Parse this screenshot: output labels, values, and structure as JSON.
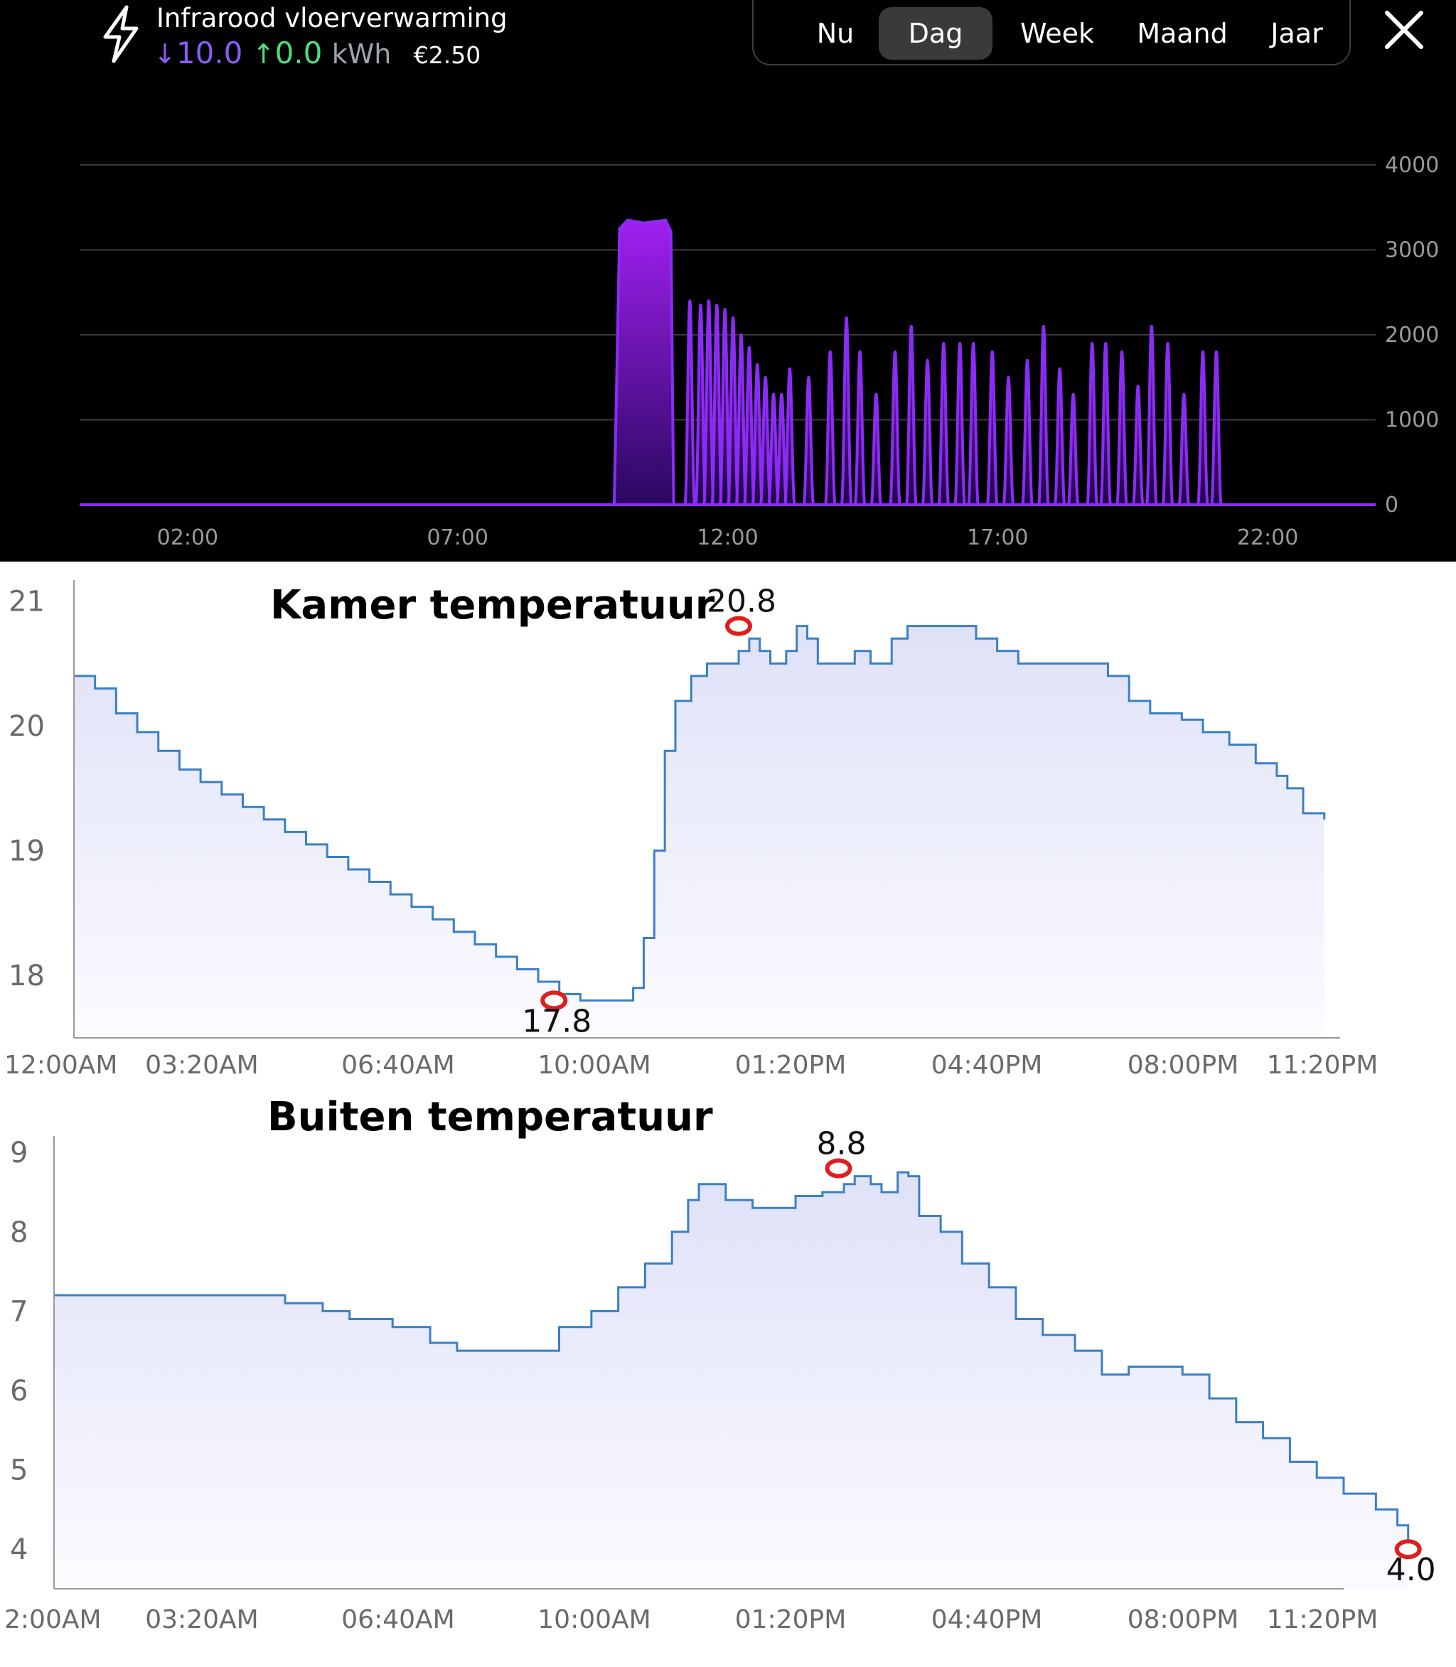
{
  "header": {
    "title": "Infrarood vloerverwarming",
    "import_value": "10.0",
    "export_value": "0.0",
    "unit": "kWh",
    "cost": "€2.50",
    "icons": [
      "lightning-icon",
      "arrow-down-icon",
      "arrow-up-icon",
      "close-icon"
    ]
  },
  "period_tabs": [
    {
      "label": "Nu",
      "active": false
    },
    {
      "label": "Dag",
      "active": true
    },
    {
      "label": "Week",
      "active": false
    },
    {
      "label": "Maand",
      "active": false
    },
    {
      "label": "Jaar",
      "active": false
    }
  ],
  "colors": {
    "power": "#8b2cf5",
    "temperature": "#3a7fc6",
    "temperature_fill": "#e4e6fa",
    "marker": "#e11d1d",
    "import": "#8b5cf6",
    "export": "#4ade80"
  },
  "chart_data": [
    {
      "type": "area",
      "title": "",
      "xlabel": "",
      "ylabel": "",
      "x_range": [
        0,
        24
      ],
      "xticks": [
        "02:00",
        "07:00",
        "12:00",
        "17:00",
        "22:00"
      ],
      "yticks": [
        "4000",
        "3000",
        "2000",
        "1000",
        "0"
      ],
      "ylim": [
        0,
        4000
      ],
      "grid": true,
      "series": [
        {
          "blocks": [
            [
              9.9,
              11.0,
              3350
            ]
          ],
          "pulses": [
            [
              11.3,
              2400
            ],
            [
              11.5,
              2350
            ],
            [
              11.65,
              2400
            ],
            [
              11.8,
              2350
            ],
            [
              11.95,
              2300
            ],
            [
              12.1,
              2200
            ],
            [
              12.25,
              2000
            ],
            [
              12.4,
              1850
            ],
            [
              12.55,
              1650
            ],
            [
              12.7,
              1500
            ],
            [
              12.85,
              1300
            ],
            [
              13.0,
              1300
            ],
            [
              13.15,
              1600
            ],
            [
              13.5,
              1500
            ],
            [
              13.9,
              1800
            ],
            [
              14.2,
              2200
            ],
            [
              14.45,
              1800
            ],
            [
              14.75,
              1300
            ],
            [
              15.1,
              1800
            ],
            [
              15.4,
              2100
            ],
            [
              15.7,
              1700
            ],
            [
              16.0,
              1900
            ],
            [
              16.3,
              1900
            ],
            [
              16.55,
              1900
            ],
            [
              16.9,
              1800
            ],
            [
              17.2,
              1500
            ],
            [
              17.55,
              1700
            ],
            [
              17.85,
              2100
            ],
            [
              18.15,
              1600
            ],
            [
              18.4,
              1300
            ],
            [
              18.75,
              1900
            ],
            [
              19.0,
              1900
            ],
            [
              19.3,
              1800
            ],
            [
              19.6,
              1400
            ],
            [
              19.85,
              2100
            ],
            [
              20.15,
              1900
            ],
            [
              20.45,
              1300
            ],
            [
              20.8,
              1800
            ],
            [
              21.05,
              1800
            ]
          ]
        }
      ]
    },
    {
      "type": "line",
      "title": "Kamer temperatuur",
      "xlabel": "",
      "ylabel": "",
      "x_range": [
        0,
        24
      ],
      "xticks": [
        "12:00AM",
        "03:20AM",
        "06:40AM",
        "10:00AM",
        "01:20PM",
        "04:40PM",
        "08:00PM",
        "11:20PM"
      ],
      "yticks": [
        "21",
        "20",
        "19",
        "18"
      ],
      "ylim": [
        17.5,
        21.1
      ],
      "grid": false,
      "series": [
        {
          "points": [
            [
              0,
              20.4
            ],
            [
              0.4,
              20.3
            ],
            [
              0.8,
              20.1
            ],
            [
              1.2,
              19.95
            ],
            [
              1.6,
              19.8
            ],
            [
              2.0,
              19.65
            ],
            [
              2.4,
              19.55
            ],
            [
              2.8,
              19.45
            ],
            [
              3.2,
              19.35
            ],
            [
              3.6,
              19.25
            ],
            [
              4.0,
              19.15
            ],
            [
              4.4,
              19.05
            ],
            [
              4.8,
              18.95
            ],
            [
              5.2,
              18.85
            ],
            [
              5.6,
              18.75
            ],
            [
              6.0,
              18.65
            ],
            [
              6.4,
              18.55
            ],
            [
              6.8,
              18.45
            ],
            [
              7.2,
              18.35
            ],
            [
              7.6,
              18.25
            ],
            [
              8.0,
              18.15
            ],
            [
              8.4,
              18.05
            ],
            [
              8.8,
              17.95
            ],
            [
              9.2,
              17.85
            ],
            [
              9.6,
              17.8
            ],
            [
              10.2,
              17.8
            ],
            [
              10.6,
              17.9
            ],
            [
              10.8,
              18.3
            ],
            [
              11.0,
              19.0
            ],
            [
              11.2,
              19.8
            ],
            [
              11.4,
              20.2
            ],
            [
              11.7,
              20.4
            ],
            [
              12.0,
              20.5
            ],
            [
              12.3,
              20.5
            ],
            [
              12.6,
              20.6
            ],
            [
              12.8,
              20.7
            ],
            [
              13.0,
              20.6
            ],
            [
              13.2,
              20.5
            ],
            [
              13.5,
              20.6
            ],
            [
              13.7,
              20.8
            ],
            [
              13.9,
              20.7
            ],
            [
              14.1,
              20.5
            ],
            [
              14.5,
              20.5
            ],
            [
              14.8,
              20.6
            ],
            [
              15.1,
              20.5
            ],
            [
              15.5,
              20.7
            ],
            [
              15.8,
              20.8
            ],
            [
              16.3,
              20.8
            ],
            [
              16.8,
              20.8
            ],
            [
              17.1,
              20.7
            ],
            [
              17.5,
              20.6
            ],
            [
              17.9,
              20.5
            ],
            [
              18.5,
              20.5
            ],
            [
              19.2,
              20.5
            ],
            [
              19.6,
              20.4
            ],
            [
              20.0,
              20.2
            ],
            [
              20.4,
              20.1
            ],
            [
              21.0,
              20.05
            ],
            [
              21.4,
              19.95
            ],
            [
              21.9,
              19.85
            ],
            [
              22.4,
              19.7
            ],
            [
              22.8,
              19.6
            ],
            [
              23.0,
              19.5
            ],
            [
              23.3,
              19.3
            ],
            [
              23.7,
              19.25
            ]
          ],
          "annotations": [
            {
              "label": "17.8",
              "x": 9.1,
              "y": 17.8,
              "kind": "min"
            },
            {
              "label": "20.8",
              "x": 12.6,
              "y": 20.8,
              "kind": "max"
            }
          ]
        }
      ]
    },
    {
      "type": "line",
      "title": "Buiten temperatuur",
      "xlabel": "",
      "ylabel": "",
      "x_range": [
        0,
        24
      ],
      "xticks": [
        "2:00AM",
        "03:20AM",
        "06:40AM",
        "10:00AM",
        "01:20PM",
        "04:40PM",
        "08:00PM",
        "11:20PM"
      ],
      "yticks": [
        "9",
        "8",
        "7",
        "6",
        "5",
        "4"
      ],
      "ylim": [
        3.5,
        9.1
      ],
      "grid": false,
      "series": [
        {
          "points": [
            [
              0,
              7.2
            ],
            [
              1.5,
              7.2
            ],
            [
              3.3,
              7.2
            ],
            [
              4.3,
              7.1
            ],
            [
              5.0,
              7.0
            ],
            [
              5.5,
              6.9
            ],
            [
              6.3,
              6.8
            ],
            [
              7.0,
              6.6
            ],
            [
              7.5,
              6.5
            ],
            [
              8.5,
              6.5
            ],
            [
              9.0,
              6.5
            ],
            [
              9.4,
              6.8
            ],
            [
              10.0,
              7.0
            ],
            [
              10.5,
              7.3
            ],
            [
              11.0,
              7.6
            ],
            [
              11.5,
              8.0
            ],
            [
              11.8,
              8.4
            ],
            [
              12.0,
              8.6
            ],
            [
              12.5,
              8.4
            ],
            [
              13.0,
              8.3
            ],
            [
              13.4,
              8.3
            ],
            [
              13.8,
              8.45
            ],
            [
              14.3,
              8.5
            ],
            [
              14.7,
              8.6
            ],
            [
              14.9,
              8.7
            ],
            [
              15.2,
              8.6
            ],
            [
              15.4,
              8.5
            ],
            [
              15.7,
              8.75
            ],
            [
              15.9,
              8.7
            ],
            [
              16.1,
              8.2
            ],
            [
              16.5,
              8.0
            ],
            [
              16.9,
              7.6
            ],
            [
              17.4,
              7.3
            ],
            [
              17.9,
              6.9
            ],
            [
              18.4,
              6.7
            ],
            [
              19.0,
              6.5
            ],
            [
              19.5,
              6.2
            ],
            [
              20.0,
              6.3
            ],
            [
              20.5,
              6.3
            ],
            [
              21.0,
              6.2
            ],
            [
              21.5,
              5.9
            ],
            [
              22.0,
              5.6
            ],
            [
              22.5,
              5.4
            ],
            [
              23.0,
              5.1
            ],
            [
              23.5,
              4.9
            ],
            [
              24.0,
              4.7
            ],
            [
              24.6,
              4.5
            ],
            [
              25.0,
              4.3
            ],
            [
              25.2,
              4.0
            ]
          ],
          "annotations": [
            {
              "label": "8.8",
              "x": 14.6,
              "y": 8.8,
              "kind": "max"
            },
            {
              "label": "4.0",
              "x": 25.2,
              "y": 4.0,
              "kind": "min"
            }
          ]
        }
      ]
    }
  ]
}
